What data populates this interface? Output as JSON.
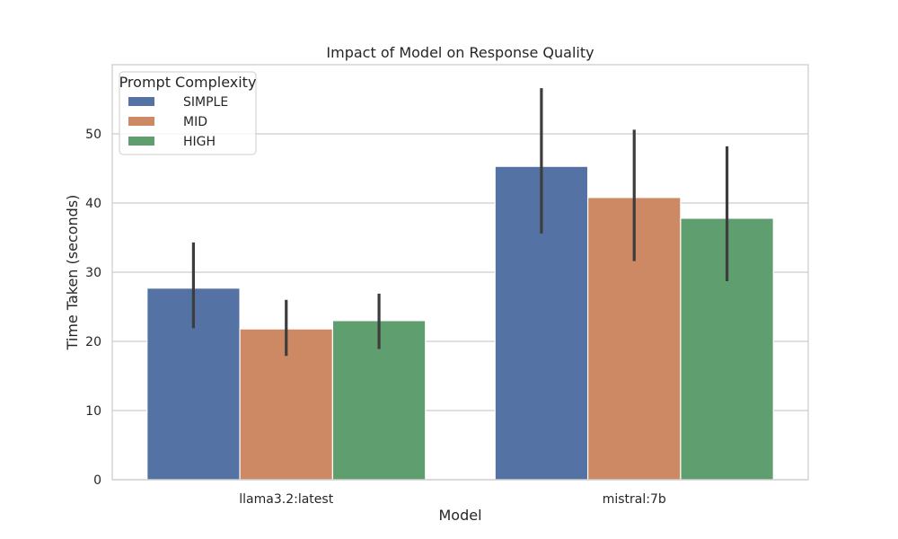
{
  "chart_data": {
    "type": "bar",
    "title": "Impact of Model on Response Quality",
    "xlabel": "Model",
    "ylabel": "Time Taken (seconds)",
    "categories": [
      "llama3.2:latest",
      "mistral:7b"
    ],
    "ylim": [
      0,
      60
    ],
    "yticks": [
      0,
      10,
      20,
      30,
      40,
      50
    ],
    "grid": true,
    "legend": {
      "title": "Prompt Complexity",
      "placement": "top-left"
    },
    "series": [
      {
        "name": "SIMPLE",
        "color": "#5572a4",
        "values": [
          27.7,
          45.3
        ],
        "error_low": [
          21.9,
          35.6
        ],
        "error_high": [
          34.3,
          56.6
        ]
      },
      {
        "name": "MID",
        "color": "#cc8963",
        "values": [
          21.8,
          40.8
        ],
        "error_low": [
          17.9,
          31.6
        ],
        "error_high": [
          26.0,
          50.6
        ]
      },
      {
        "name": "HIGH",
        "color": "#5f9e6e",
        "values": [
          23.0,
          37.8
        ],
        "error_low": [
          18.9,
          28.7
        ],
        "error_high": [
          26.9,
          48.2
        ]
      }
    ]
  }
}
